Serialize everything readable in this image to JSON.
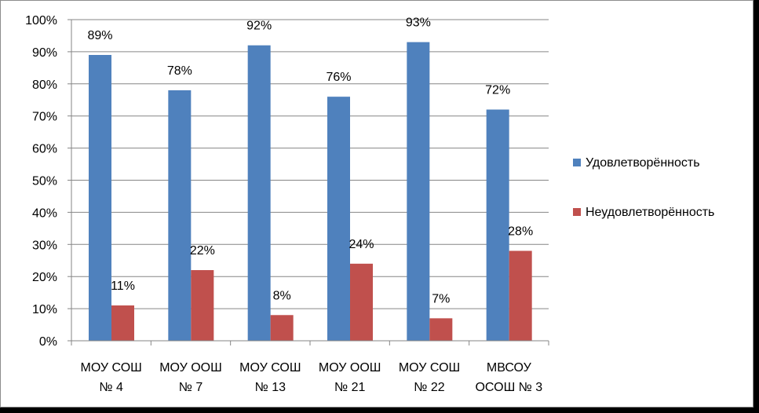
{
  "chart_data": {
    "type": "bar",
    "title": "",
    "xlabel": "",
    "ylabel": "",
    "ylim": [
      0,
      100
    ],
    "y_ticks": [
      "0%",
      "10%",
      "20%",
      "30%",
      "40%",
      "50%",
      "60%",
      "70%",
      "80%",
      "90%",
      "100%"
    ],
    "categories": [
      [
        "МОУ СОШ",
        "№ 4"
      ],
      [
        "МОУ ООШ",
        "№ 7"
      ],
      [
        "МОУ СОШ",
        "№ 13"
      ],
      [
        "МОУ ООШ",
        "№ 21"
      ],
      [
        "МОУ СОШ",
        "№ 22"
      ],
      [
        "МВСОУ",
        "ОСОШ № 3"
      ]
    ],
    "series": [
      {
        "name": "Удовлетворённость",
        "color": "#4f81bd",
        "values": [
          89,
          78,
          92,
          76,
          93,
          72
        ],
        "labels": [
          "89%",
          "78%",
          "92%",
          "76%",
          "93%",
          "72%"
        ]
      },
      {
        "name": "Неудовлетворённость",
        "color": "#c0504d",
        "values": [
          11,
          22,
          8,
          24,
          7,
          28
        ],
        "labels": [
          "11%",
          "22%",
          "8%",
          "24%",
          "7%",
          "28%"
        ]
      }
    ],
    "grid": true,
    "legend_position": "right"
  }
}
